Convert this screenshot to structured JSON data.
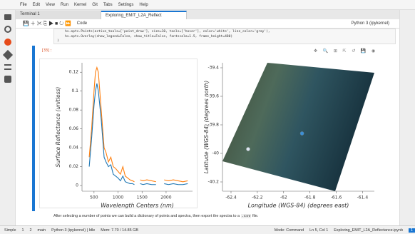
{
  "menu": [
    "File",
    "Edit",
    "View",
    "Run",
    "Kernel",
    "Git",
    "Tabs",
    "Settings",
    "Help"
  ],
  "tabs": [
    "Terminal 1",
    "Exploring_EMIT_L2A_Reflect"
  ],
  "toolbar": {
    "cell_type": "Code",
    "kernel": "Python 3 (ipykernel)"
  },
  "code": [
    "    hv.opts.Points(active_tools=['point_draw'], size=10, tools=['hover'], color='white', line_color='gray'),",
    "    hv.opts.Overlay(show_legend=False, show_title=False, fontscale=1.5, frame_height=480)",
    ")"
  ],
  "cell_prompt": "[33]:",
  "note": {
    "text": "After selecting a number of points we can build a dictionary of points and spectra, then export the spectra to a",
    "code": ".csv",
    "end": "file."
  },
  "status": {
    "mode": "Simple",
    "count1": "1",
    "count2": "2",
    "branch": "main",
    "kernel": "Python 3 (ipykernel) | Idle",
    "mem": "Mem: 7.70 / 14.85 GB",
    "cmd": "Mode: Command",
    "pos": "Ln 5, Col 1",
    "file": "Exploring_EMIT_L2A_Reflectance.ipynb",
    "badge": "1"
  },
  "chart_data": [
    {
      "type": "line",
      "xlabel": "Wavelength Centers (nm)",
      "ylabel": "Surface Reflectance (unitless)",
      "x": [
        400,
        450,
        500,
        530,
        560,
        590,
        620,
        650,
        680,
        710,
        750,
        800,
        850,
        900,
        950,
        1000,
        1050,
        1100,
        1150,
        1200,
        1250,
        1300,
        1340,
        1400,
        1460,
        1520,
        1600,
        1700,
        1790,
        1870,
        1960,
        2050,
        2150,
        2250,
        2350,
        2450
      ],
      "series": [
        {
          "color": "#ff7f0e",
          "values": [
            0.03,
            0.06,
            0.1,
            0.12,
            0.125,
            0.12,
            0.1,
            0.08,
            0.06,
            0.04,
            0.035,
            0.025,
            0.03,
            0.02,
            0.018,
            0.015,
            0.012,
            0.02,
            0.01,
            0.008,
            0.006,
            0.005,
            0.004,
            null,
            0.006,
            0.005,
            0.006,
            0.005,
            0.004,
            null,
            0.006,
            0.005,
            0.006,
            0.005,
            0.004,
            0.005
          ]
        },
        {
          "color": "#1f77b4",
          "values": [
            0.02,
            0.05,
            0.085,
            0.1,
            0.108,
            0.1,
            0.085,
            0.07,
            0.05,
            0.03,
            0.025,
            0.02,
            0.022,
            0.012,
            0.01,
            0.008,
            0.005,
            0.01,
            0.004,
            0.003,
            0.002,
            0.002,
            0.001,
            null,
            0.002,
            0.001,
            0.002,
            0.001,
            0.001,
            null,
            0.002,
            0.001,
            0.002,
            0.001,
            0.001,
            0.002
          ]
        }
      ],
      "xlim": [
        250,
        2550
      ],
      "xticks": [
        500,
        1000,
        1500,
        2000
      ],
      "ylim": [
        -0.006,
        0.13
      ],
      "yticks": [
        0,
        0.02,
        0.04,
        0.06,
        0.08,
        0.1,
        0.12
      ]
    },
    {
      "type": "scatter",
      "xlabel": "Longitude (WGS-84) (degrees east)",
      "ylabel": "Latitude (WGS-84) (degrees north)",
      "x": [
        -62.27,
        -61.86
      ],
      "values": [
        -39.97,
        -39.86
      ],
      "colors": [
        "#dde6f2",
        "#3b8fd6"
      ],
      "xlim": [
        -62.465,
        -61.31
      ],
      "xticks": [
        -62.4,
        -62.2,
        -62,
        -61.8,
        -61.6,
        -61.4
      ],
      "ylim": [
        -40.265,
        -39.365
      ],
      "yticks": [
        -39.4,
        -39.6,
        -39.8,
        -40,
        -40.2
      ]
    }
  ]
}
